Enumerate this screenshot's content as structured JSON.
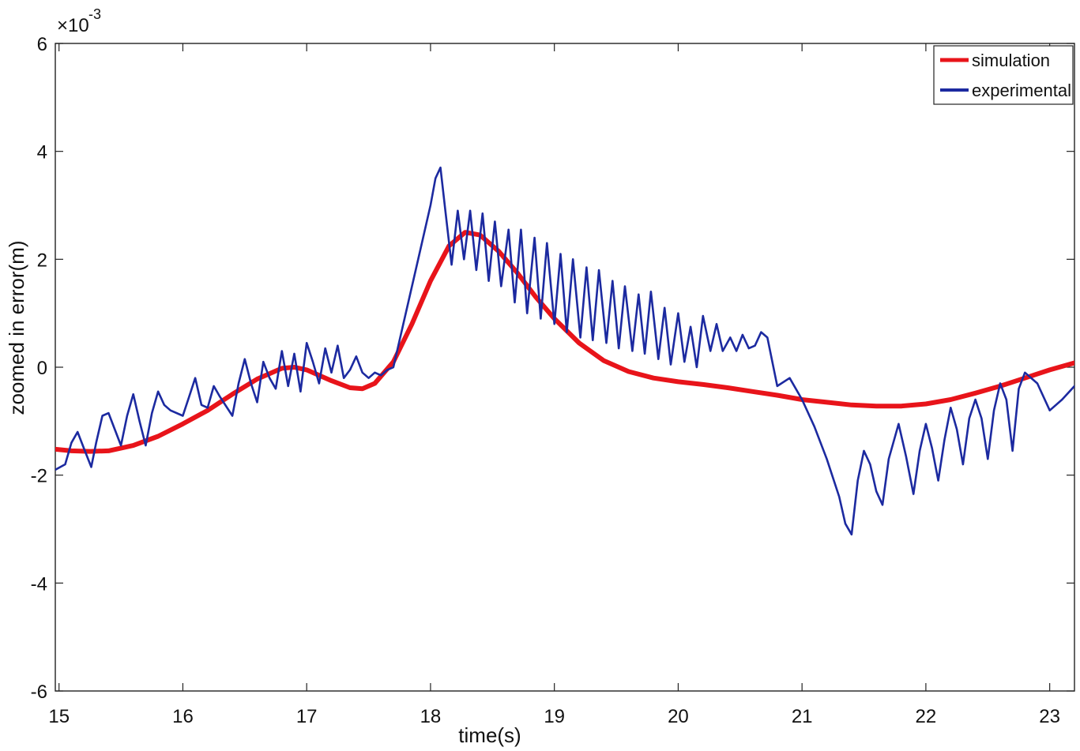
{
  "chart_data": {
    "type": "line",
    "title": "",
    "xlabel": "time(s)",
    "ylabel": "zoomed in error(m)",
    "y_scale_exponent": {
      "base": "×10",
      "power": "-3"
    },
    "xlim": [
      14.97,
      23.2
    ],
    "ylim": [
      -6,
      6
    ],
    "x_ticks": [
      15,
      16,
      17,
      18,
      19,
      20,
      21,
      22,
      23
    ],
    "x_tick_labels": [
      "15",
      "16",
      "17",
      "18",
      "19",
      "20",
      "21",
      "22",
      "23"
    ],
    "y_ticks": [
      -6,
      -4,
      -2,
      0,
      2,
      4,
      6
    ],
    "y_tick_labels": [
      "-6",
      "-4",
      "-2",
      "0",
      "2",
      "4",
      "6"
    ],
    "grid": false,
    "legend_position": "top-right",
    "colors": {
      "simulation": "#e8141a",
      "experimental": "#1c2aa0"
    },
    "series": [
      {
        "name": "simulation",
        "x": [
          14.97,
          15.1,
          15.25,
          15.4,
          15.6,
          15.8,
          16.0,
          16.2,
          16.4,
          16.6,
          16.8,
          16.9,
          17.0,
          17.2,
          17.35,
          17.45,
          17.55,
          17.7,
          17.85,
          18.0,
          18.15,
          18.28,
          18.4,
          18.55,
          18.7,
          18.85,
          19.0,
          19.2,
          19.4,
          19.6,
          19.8,
          20.0,
          20.2,
          20.4,
          20.6,
          20.8,
          21.0,
          21.2,
          21.4,
          21.6,
          21.8,
          22.0,
          22.2,
          22.4,
          22.6,
          22.8,
          23.0,
          23.2
        ],
        "y": [
          -1.52,
          -1.55,
          -1.56,
          -1.55,
          -1.45,
          -1.28,
          -1.05,
          -0.8,
          -0.5,
          -0.22,
          -0.02,
          0.0,
          -0.05,
          -0.25,
          -0.38,
          -0.4,
          -0.3,
          0.1,
          0.8,
          1.6,
          2.25,
          2.5,
          2.45,
          2.15,
          1.75,
          1.3,
          0.9,
          0.45,
          0.12,
          -0.08,
          -0.2,
          -0.27,
          -0.32,
          -0.38,
          -0.45,
          -0.52,
          -0.6,
          -0.65,
          -0.7,
          -0.72,
          -0.72,
          -0.68,
          -0.6,
          -0.48,
          -0.35,
          -0.2,
          -0.05,
          0.08
        ]
      },
      {
        "name": "experimental",
        "x": [
          14.97,
          15.05,
          15.1,
          15.15,
          15.2,
          15.26,
          15.3,
          15.35,
          15.4,
          15.5,
          15.55,
          15.6,
          15.65,
          15.7,
          15.75,
          15.8,
          15.85,
          15.9,
          16.0,
          16.05,
          16.1,
          16.15,
          16.2,
          16.25,
          16.3,
          16.4,
          16.45,
          16.5,
          16.55,
          16.6,
          16.65,
          16.7,
          16.75,
          16.8,
          16.85,
          16.9,
          16.95,
          17.0,
          17.05,
          17.1,
          17.15,
          17.2,
          17.25,
          17.3,
          17.35,
          17.4,
          17.45,
          17.5,
          17.55,
          17.6,
          17.65,
          17.7,
          17.8,
          17.9,
          18.0,
          18.04,
          18.08,
          18.12,
          18.17,
          18.22,
          18.27,
          18.32,
          18.37,
          18.42,
          18.47,
          18.52,
          18.57,
          18.63,
          18.68,
          18.73,
          18.78,
          18.84,
          18.89,
          18.94,
          19.0,
          19.05,
          19.1,
          19.15,
          19.21,
          19.26,
          19.31,
          19.36,
          19.42,
          19.47,
          19.52,
          19.57,
          19.63,
          19.68,
          19.73,
          19.78,
          19.84,
          19.89,
          19.94,
          20.0,
          20.05,
          20.1,
          20.15,
          20.2,
          20.26,
          20.31,
          20.36,
          20.42,
          20.47,
          20.52,
          20.57,
          20.62,
          20.67,
          20.72,
          20.8,
          20.9,
          21.0,
          21.1,
          21.2,
          21.3,
          21.35,
          21.4,
          21.45,
          21.5,
          21.55,
          21.6,
          21.65,
          21.7,
          21.78,
          21.84,
          21.9,
          21.95,
          22.0,
          22.05,
          22.1,
          22.15,
          22.2,
          22.25,
          22.3,
          22.35,
          22.4,
          22.45,
          22.5,
          22.55,
          22.6,
          22.65,
          22.7,
          22.75,
          22.8,
          22.9,
          23.0,
          23.1,
          23.2
        ],
        "y": [
          -1.9,
          -1.8,
          -1.4,
          -1.2,
          -1.5,
          -1.85,
          -1.4,
          -0.9,
          -0.85,
          -1.45,
          -0.9,
          -0.5,
          -1.0,
          -1.45,
          -0.85,
          -0.45,
          -0.7,
          -0.8,
          -0.9,
          -0.55,
          -0.2,
          -0.7,
          -0.75,
          -0.35,
          -0.55,
          -0.9,
          -0.3,
          0.15,
          -0.3,
          -0.65,
          0.1,
          -0.2,
          -0.4,
          0.3,
          -0.35,
          0.25,
          -0.45,
          0.45,
          0.1,
          -0.3,
          0.35,
          -0.1,
          0.4,
          -0.2,
          -0.05,
          0.2,
          -0.1,
          -0.2,
          -0.1,
          -0.15,
          -0.05,
          0.0,
          1.0,
          2.0,
          3.0,
          3.5,
          3.7,
          2.9,
          1.9,
          2.9,
          2.0,
          2.9,
          1.8,
          2.85,
          1.6,
          2.7,
          1.5,
          2.55,
          1.2,
          2.55,
          1.0,
          2.4,
          0.9,
          2.3,
          0.8,
          2.1,
          0.65,
          2.0,
          0.55,
          1.85,
          0.5,
          1.8,
          0.45,
          1.6,
          0.35,
          1.5,
          0.3,
          1.35,
          0.25,
          1.4,
          0.15,
          1.1,
          0.05,
          1.0,
          0.1,
          0.75,
          0.0,
          0.95,
          0.3,
          0.8,
          0.3,
          0.55,
          0.3,
          0.6,
          0.35,
          0.4,
          0.65,
          0.55,
          -0.35,
          -0.2,
          -0.6,
          -1.1,
          -1.7,
          -2.4,
          -2.9,
          -3.1,
          -2.1,
          -1.55,
          -1.8,
          -2.3,
          -2.55,
          -1.7,
          -1.05,
          -1.65,
          -2.35,
          -1.55,
          -1.05,
          -1.5,
          -2.1,
          -1.35,
          -0.75,
          -1.15,
          -1.8,
          -0.95,
          -0.6,
          -0.95,
          -1.7,
          -0.8,
          -0.3,
          -0.6,
          -1.55,
          -0.4,
          -0.1,
          -0.3,
          -0.8,
          -0.6,
          -0.35
        ]
      }
    ]
  }
}
